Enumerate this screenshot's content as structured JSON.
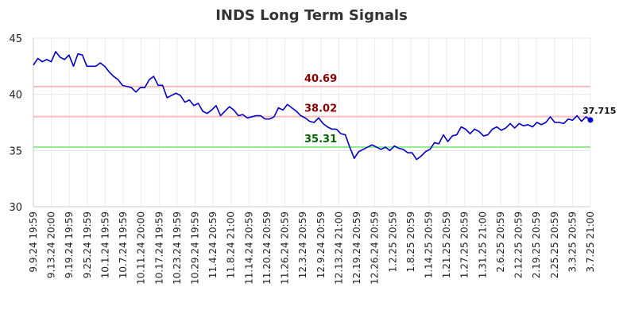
{
  "chart_data": {
    "type": "line",
    "title": "INDS Long Term Signals",
    "ylim": [
      30,
      45
    ],
    "yticks": [
      30,
      35,
      40,
      45
    ],
    "grid": true,
    "x_tick_labels": [
      "9.9.24 19:59",
      "9.13.24 20:00",
      "9.19.24 19:59",
      "9.25.24 19:59",
      "10.1.24 19:59",
      "10.7.24 19:59",
      "10.11.24 20:00",
      "10.17.24 19:59",
      "10.23.24 19:59",
      "10.29.24 19:59",
      "11.4.24 20:59",
      "11.8.24 21:00",
      "11.14.24 20:59",
      "11.20.24 20:59",
      "11.26.24 20:59",
      "12.3.24 20:59",
      "12.9.24 20:59",
      "12.13.24 21:00",
      "12.19.24 20:59",
      "12.26.24 20:59",
      "1.2.25 20:59",
      "1.8.25 20:59",
      "1.14.25 20:59",
      "1.21.25 20:59",
      "1.27.25 20:59",
      "1.31.25 21:00",
      "2.6.25 20:59",
      "2.12.25 20:59",
      "2.19.25 20:59",
      "2.25.25 20:59",
      "3.3.25 20:59",
      "3.7.25 21:00"
    ],
    "series": [
      {
        "color": "#0000cc",
        "values": [
          42.6,
          43.2,
          42.9,
          43.1,
          42.9,
          43.8,
          43.3,
          43.1,
          43.5,
          42.5,
          43.6,
          43.5,
          42.5,
          42.5,
          42.5,
          42.8,
          42.5,
          42.0,
          41.6,
          41.3,
          40.8,
          40.7,
          40.6,
          40.2,
          40.6,
          40.6,
          41.3,
          41.6,
          40.8,
          40.8,
          39.7,
          39.9,
          40.1,
          39.9,
          39.3,
          39.5,
          39.0,
          39.2,
          38.5,
          38.3,
          38.6,
          39.0,
          38.1,
          38.5,
          38.9,
          38.6,
          38.1,
          38.2,
          37.9,
          38.0,
          38.1,
          38.1,
          37.8,
          37.8,
          38.0,
          38.8,
          38.6,
          39.1,
          38.8,
          38.5,
          38.1,
          37.9,
          37.6,
          37.5,
          37.9,
          37.4,
          37.1,
          36.9,
          36.9,
          36.5,
          36.4,
          35.3,
          34.3,
          34.9,
          35.1,
          35.3,
          35.5,
          35.3,
          35.1,
          35.3,
          35.0,
          35.4,
          35.2,
          35.1,
          34.8,
          34.8,
          34.2,
          34.5,
          34.9,
          35.1,
          35.7,
          35.6,
          36.4,
          35.8,
          36.3,
          36.4,
          37.1,
          36.9,
          36.5,
          36.9,
          36.7,
          36.3,
          36.4,
          36.9,
          37.1,
          36.8,
          37.0,
          37.4,
          37.0,
          37.4,
          37.2,
          37.3,
          37.1,
          37.5,
          37.3,
          37.5,
          38.0,
          37.5,
          37.5,
          37.4,
          37.8,
          37.7,
          38.1,
          37.6,
          38.0,
          37.715
        ]
      }
    ],
    "levels": [
      {
        "value": 40.69,
        "label": "40.69",
        "line_color": "#ffbbbb",
        "text_color": "#8b0000"
      },
      {
        "value": 38.02,
        "label": "38.02",
        "line_color": "#ffbbbb",
        "text_color": "#8b0000"
      },
      {
        "value": 35.31,
        "label": "35.31",
        "line_color": "#90ee90",
        "text_color": "#006400"
      }
    ],
    "last_value_label": "37.715"
  }
}
